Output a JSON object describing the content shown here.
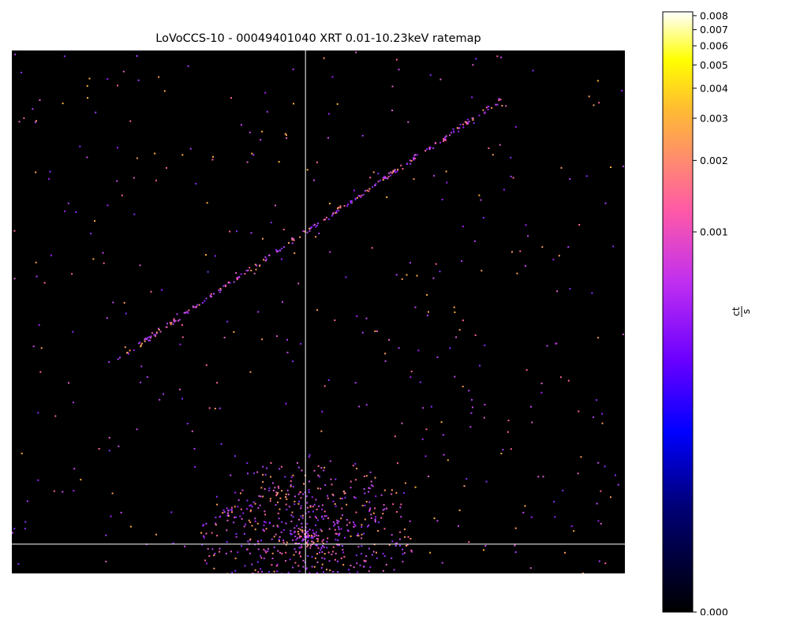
{
  "chart_data": {
    "type": "heatmap",
    "title": "LoVoCCS-10 - 00049401040 XRT 0.01-10.23keV ratemap",
    "xlabel": "",
    "ylabel": "",
    "crosshair": {
      "x_fraction": 0.479,
      "y_fraction": 0.944
    },
    "colormap": "gnuplot2",
    "colorbar": {
      "label_num": "ct",
      "label_den": "s",
      "scale": "log-stretch",
      "vmin": 0.0,
      "vmax": 0.0083,
      "ticks": [
        {
          "value": 0.008,
          "label": "0.008"
        },
        {
          "value": 0.007,
          "label": "0.007"
        },
        {
          "value": 0.006,
          "label": "0.006"
        },
        {
          "value": 0.005,
          "label": "0.005"
        },
        {
          "value": 0.004,
          "label": "0.004"
        },
        {
          "value": 0.003,
          "label": "0.003"
        },
        {
          "value": 0.002,
          "label": "0.002"
        },
        {
          "value": 0.001,
          "label": "0.001"
        },
        {
          "value": 0.0,
          "label": "0.000"
        }
      ]
    },
    "features": {
      "diagonal_streak": {
        "from": [
          0.17,
          0.59
        ],
        "to": [
          0.8,
          0.09
        ]
      },
      "cluster_center": [
        0.48,
        0.93
      ]
    }
  }
}
